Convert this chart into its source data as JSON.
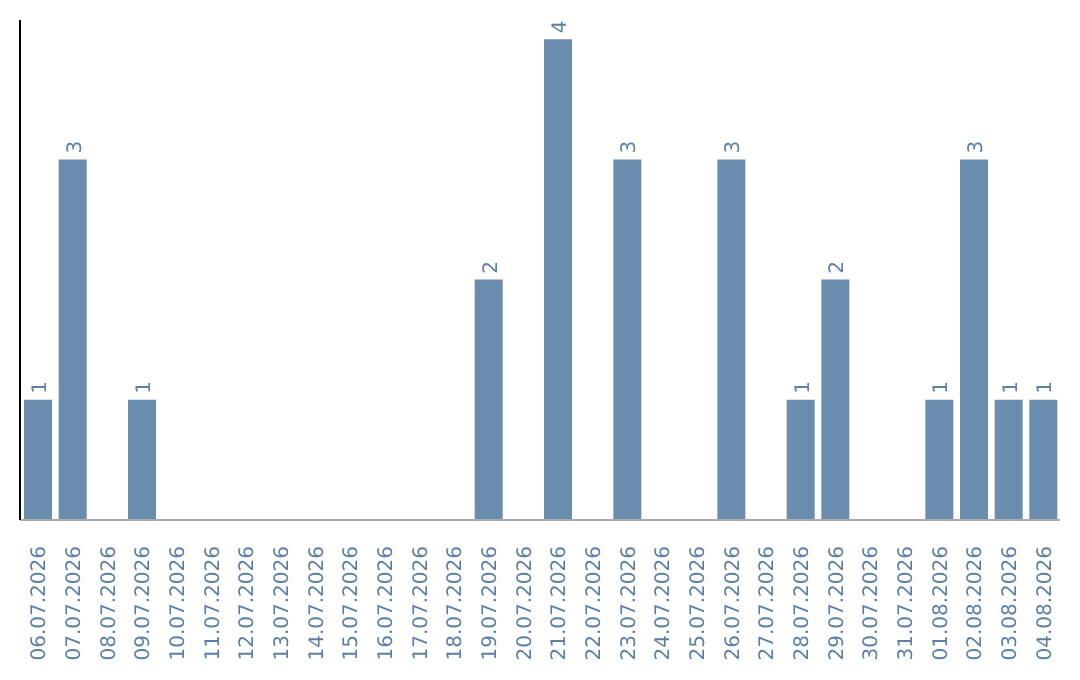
{
  "chart_data": {
    "type": "bar",
    "categories": [
      "06.07.2026",
      "07.07.2026",
      "08.07.2026",
      "09.07.2026",
      "10.07.2026",
      "11.07.2026",
      "12.07.2026",
      "13.07.2026",
      "14.07.2026",
      "15.07.2026",
      "16.07.2026",
      "17.07.2026",
      "18.07.2026",
      "19.07.2026",
      "20.07.2026",
      "21.07.2026",
      "22.07.2026",
      "23.07.2026",
      "24.07.2026",
      "25.07.2026",
      "26.07.2026",
      "27.07.2026",
      "28.07.2026",
      "29.07.2026",
      "30.07.2026",
      "31.07.2026",
      "01.08.2026",
      "02.08.2026",
      "03.08.2026",
      "04.08.2026"
    ],
    "values": [
      1,
      3,
      0,
      1,
      0,
      0,
      0,
      0,
      0,
      0,
      0,
      0,
      0,
      2,
      0,
      4,
      0,
      3,
      0,
      0,
      3,
      0,
      1,
      2,
      0,
      0,
      1,
      3,
      1,
      1
    ],
    "value_labels": [
      "1",
      "3",
      null,
      "1",
      null,
      null,
      null,
      null,
      null,
      null,
      null,
      null,
      null,
      "2",
      null,
      "4",
      null,
      "3",
      null,
      null,
      "3",
      null,
      "1",
      "2",
      null,
      null,
      "1",
      "3",
      "1",
      "1"
    ],
    "color": "#6a8caf",
    "grid": false,
    "legend": false
  }
}
